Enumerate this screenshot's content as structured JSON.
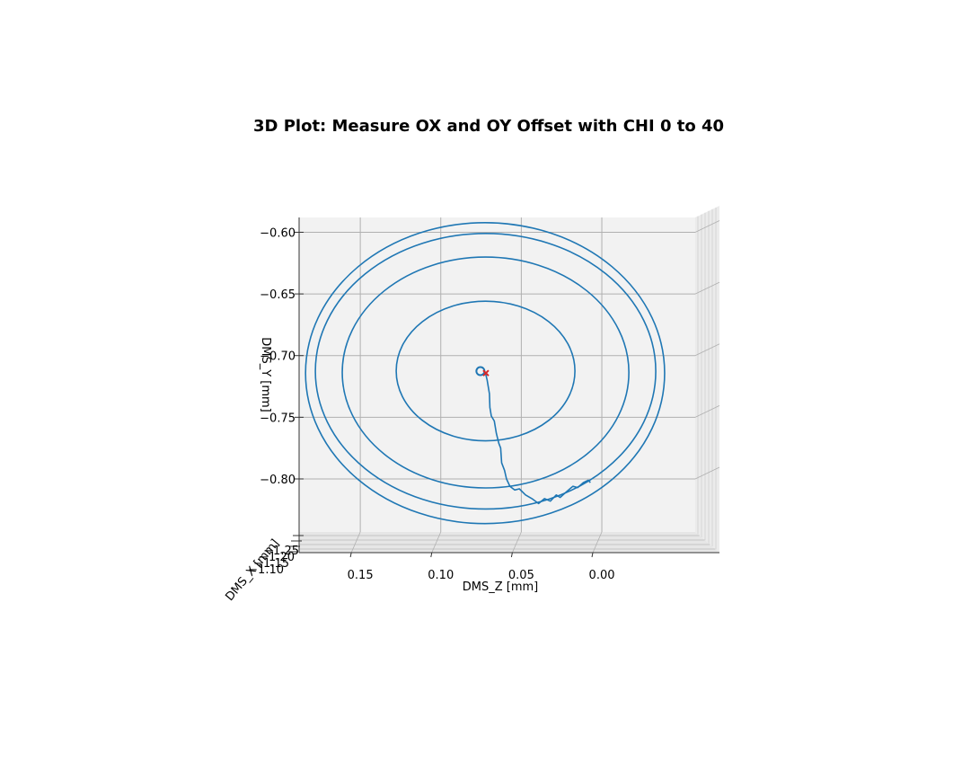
{
  "chart_data": {
    "type": "line",
    "projection": "3d",
    "title": "3D Plot: Measure OX and OY Offset with CHI 0 to 40",
    "xlabel": "DMS_Z [mm]",
    "ylabel": "DMS_Y [mm]",
    "zlabel": "DMS_X [mm]",
    "x_ticks": [
      "0.15",
      "0.10",
      "0.05",
      "0.00"
    ],
    "y_ticks": [
      "−0.60",
      "−0.65",
      "−0.70",
      "−0.75",
      "−0.80"
    ],
    "z_ticks": [
      "−1.10",
      "−1.15",
      "−1.20",
      "−1.25"
    ],
    "xlim": [
      0.188,
      -0.058
    ],
    "ylim": [
      -0.843,
      -0.588
    ],
    "x_inverted": true,
    "grid": true,
    "colors": {
      "line": "#1f77b4",
      "marker": "#d62728",
      "pane": "#f2f2f2",
      "grid": "#b0b0b0"
    },
    "series": [
      {
        "rings": [
          {
            "center": [
              0.0722,
              -0.7125
            ],
            "rx": 0.0555,
            "ry": 0.0566
          },
          {
            "center": [
              0.0722,
              -0.7137
            ],
            "rx": 0.089,
            "ry": 0.0936
          },
          {
            "center": [
              0.0722,
              -0.7127
            ],
            "rx": 0.1057,
            "ry": 0.1117
          },
          {
            "center": [
              0.0725,
              -0.7142
            ],
            "rx": 0.1115,
            "ry": 0.122
          }
        ],
        "path": [
          [
            0.0723,
            -0.714
          ],
          [
            0.0712,
            -0.72
          ],
          [
            0.0698,
            -0.731
          ],
          [
            0.0695,
            -0.742
          ],
          [
            0.0686,
            -0.749
          ],
          [
            0.0668,
            -0.753
          ],
          [
            0.0655,
            -0.763
          ],
          [
            0.064,
            -0.771
          ],
          [
            0.0628,
            -0.775
          ],
          [
            0.0622,
            -0.787
          ],
          [
            0.0604,
            -0.793
          ],
          [
            0.0592,
            -0.8
          ],
          [
            0.0571,
            -0.806
          ],
          [
            0.0541,
            -0.809
          ],
          [
            0.0512,
            -0.808
          ],
          [
            0.0474,
            -0.813
          ],
          [
            0.0434,
            -0.816
          ],
          [
            0.0393,
            -0.82
          ],
          [
            0.0356,
            -0.816
          ],
          [
            0.032,
            -0.818
          ],
          [
            0.0283,
            -0.813
          ],
          [
            0.0259,
            -0.815
          ],
          [
            0.0216,
            -0.81
          ],
          [
            0.018,
            -0.806
          ],
          [
            0.015,
            -0.807
          ],
          [
            0.0115,
            -0.803
          ],
          [
            0.0083,
            -0.801
          ],
          [
            0.0071,
            -0.803
          ]
        ],
        "markers": [
          {
            "shape": "circle",
            "at": [
              0.0754,
              -0.7126
            ],
            "color": "#1f77b4"
          },
          {
            "shape": "x",
            "at": [
              0.072,
              -0.7142
            ],
            "color": "#d62728"
          }
        ]
      }
    ]
  }
}
